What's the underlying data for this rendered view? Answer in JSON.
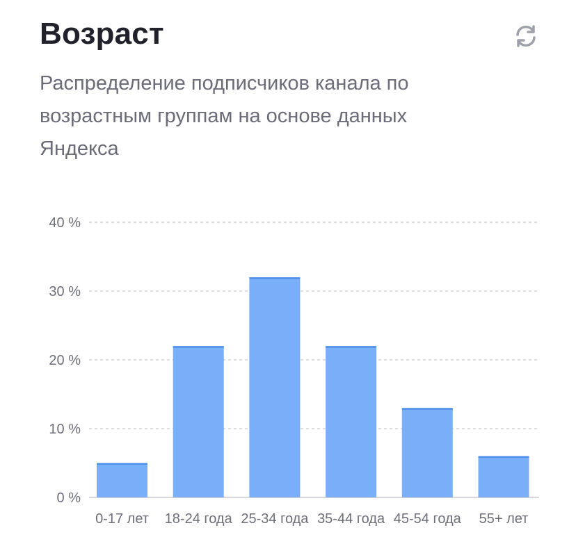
{
  "header": {
    "title": "Возраст",
    "subtitle": "Распределение подписчиков канала по возрастным группам на основе данных Яндекса",
    "refresh_icon": "refresh-icon"
  },
  "colors": {
    "bar": "#78aff8",
    "bar_top": "#4f8fe6",
    "grid": "#c9c9cf",
    "title": "#21212b",
    "text": "#6b6c78"
  },
  "chart_data": {
    "type": "bar",
    "categories": [
      "0-17 лет",
      "18-24 года",
      "25-34 года",
      "35-44 года",
      "45-54 года",
      "55+ лет"
    ],
    "values": [
      5,
      22,
      32,
      22,
      13,
      6
    ],
    "yticks": [
      "0 %",
      "10 %",
      "20 %",
      "30 %",
      "40 %"
    ],
    "ylim": [
      0,
      40
    ],
    "unit": "%",
    "grid": true
  }
}
